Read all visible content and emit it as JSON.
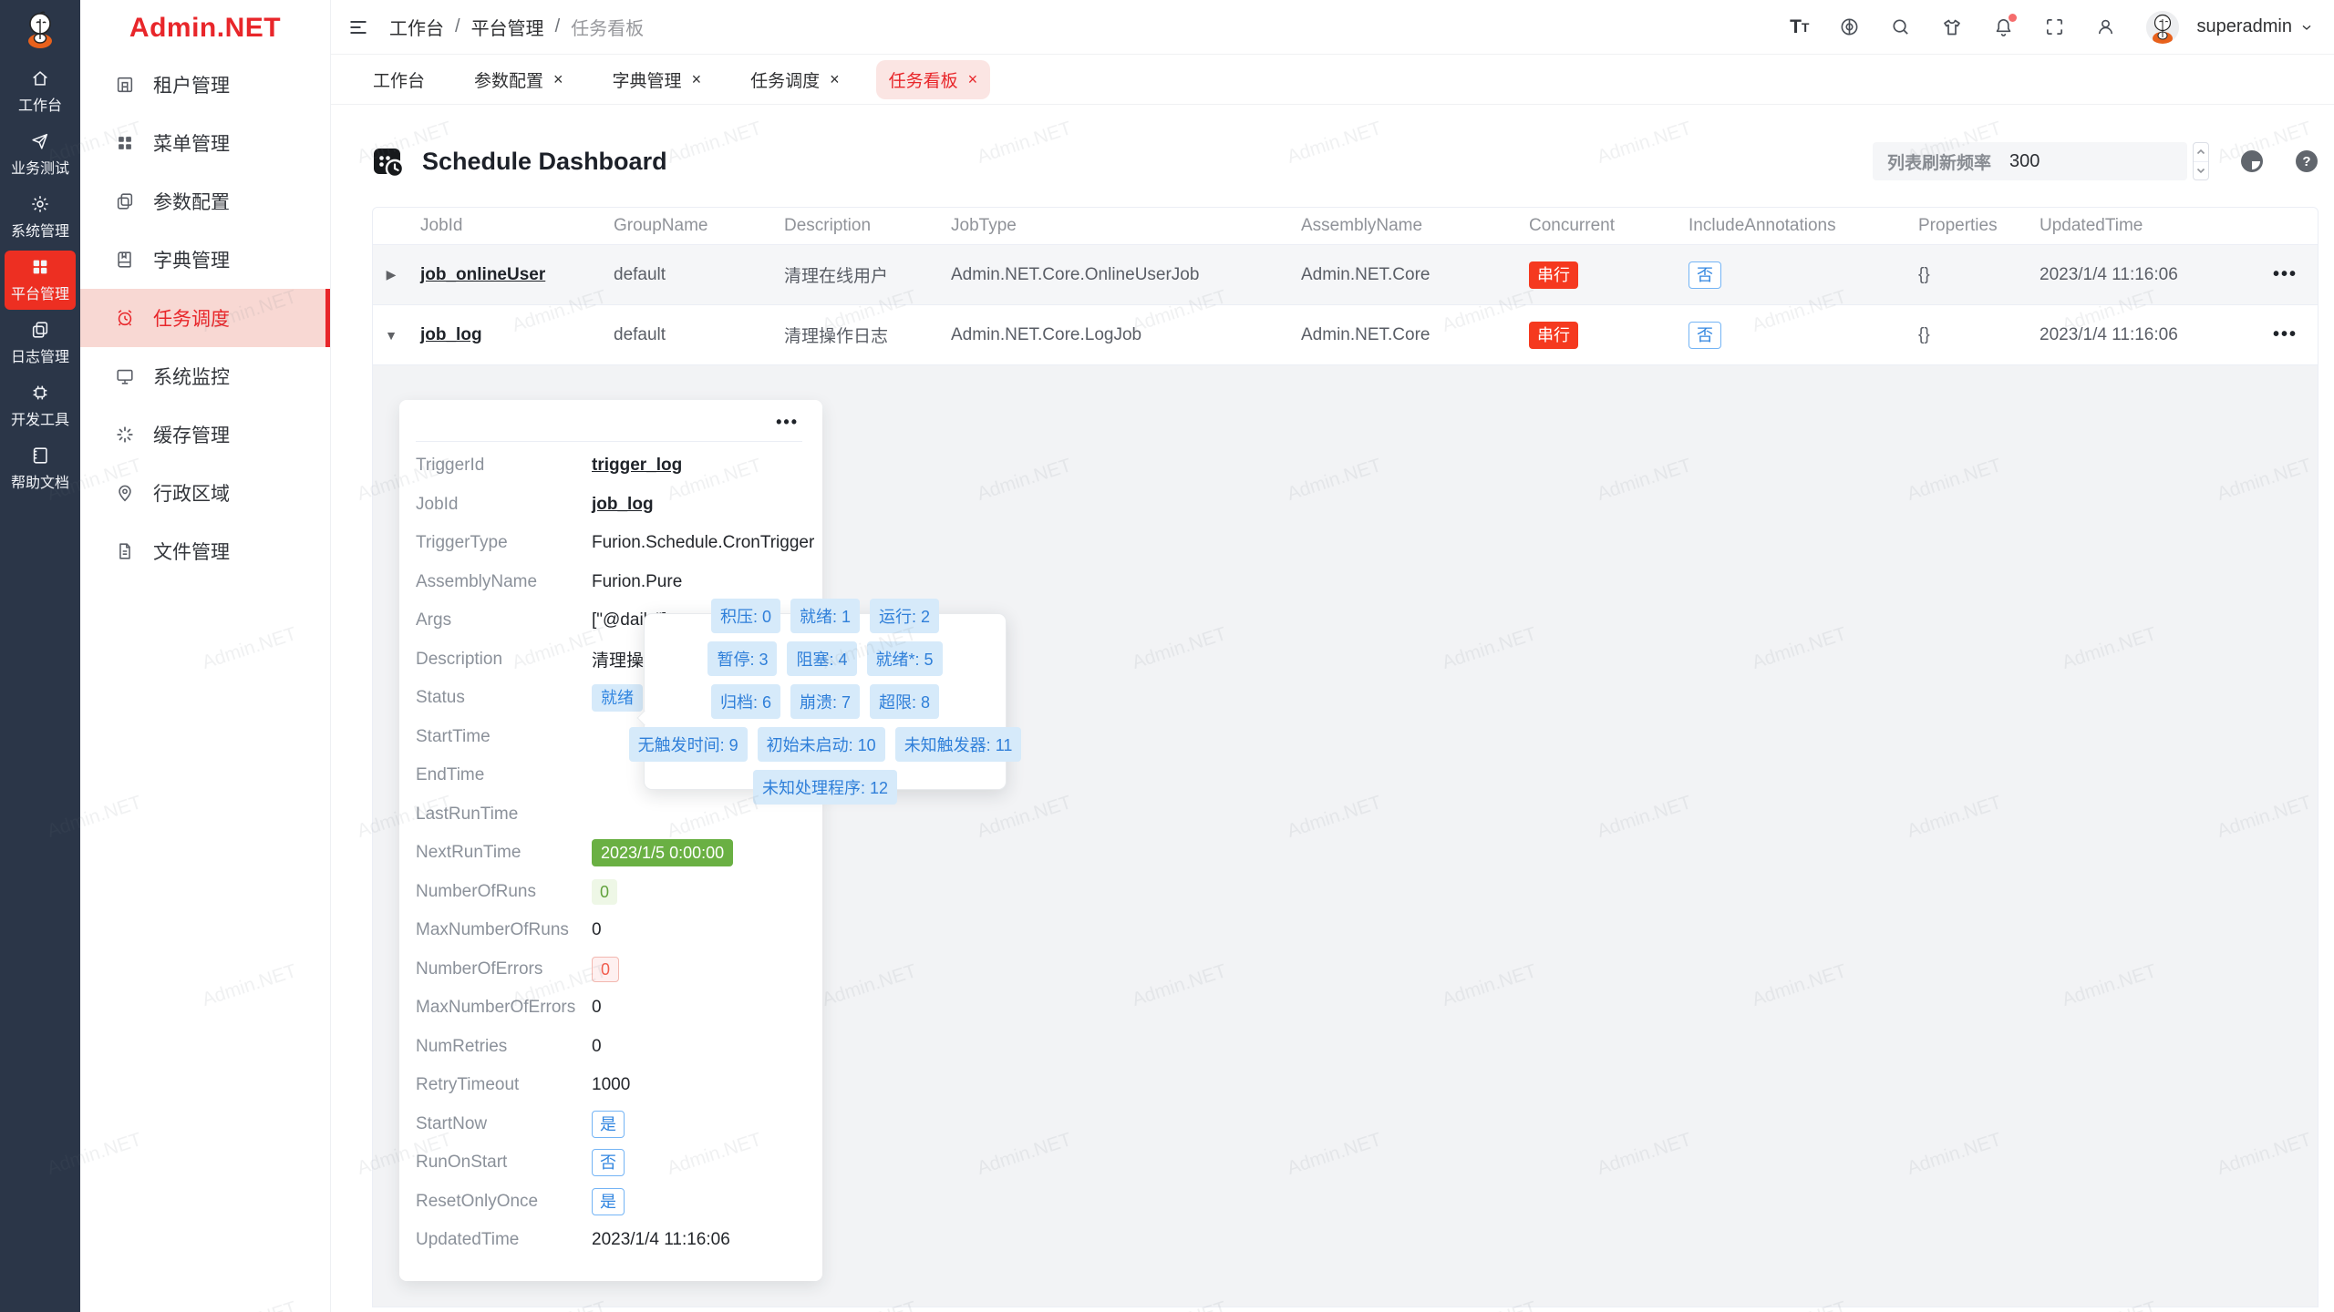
{
  "watermark": {
    "text": "Admin.NET"
  },
  "brand": {
    "logo_text": "Admin.NET"
  },
  "icons": {
    "more": "•••",
    "caret_right": "▶",
    "caret_down": "▼",
    "close": "×",
    "chevron_down": "⌄"
  },
  "rail": {
    "items": [
      {
        "label": "工作台"
      },
      {
        "label": "业务测试"
      },
      {
        "label": "系统管理"
      },
      {
        "label": "平台管理"
      },
      {
        "label": "日志管理"
      },
      {
        "label": "开发工具"
      },
      {
        "label": "帮助文档"
      }
    ]
  },
  "sidebar": {
    "items": [
      {
        "label": "租户管理"
      },
      {
        "label": "菜单管理"
      },
      {
        "label": "参数配置"
      },
      {
        "label": "字典管理"
      },
      {
        "label": "任务调度"
      },
      {
        "label": "系统监控"
      },
      {
        "label": "缓存管理"
      },
      {
        "label": "行政区域"
      },
      {
        "label": "文件管理"
      }
    ]
  },
  "topbar": {
    "breadcrumb": [
      "工作台",
      "平台管理",
      "任务看板"
    ],
    "separator": "/",
    "username": "superadmin"
  },
  "tabs": [
    {
      "label": "工作台"
    },
    {
      "label": "参数配置"
    },
    {
      "label": "字典管理"
    },
    {
      "label": "任务调度"
    },
    {
      "label": "任务看板"
    }
  ],
  "toolbar": {
    "title": "Schedule Dashboard",
    "refresh_label": "列表刷新频率",
    "refresh_value": "300"
  },
  "table": {
    "columns": [
      "JobId",
      "GroupName",
      "Description",
      "JobType",
      "AssemblyName",
      "Concurrent",
      "IncludeAnnotations",
      "Properties",
      "UpdatedTime"
    ],
    "rows": [
      {
        "job_id": "job_onlineUser",
        "group": "default",
        "description": "清理在线用户",
        "job_type": "Admin.NET.Core.OnlineUserJob",
        "assembly": "Admin.NET.Core",
        "concurrent": "串行",
        "include_annotations": "否",
        "properties": "{}",
        "updated_time": "2023/1/4 11:16:06"
      },
      {
        "job_id": "job_log",
        "group": "default",
        "description": "清理操作日志",
        "job_type": "Admin.NET.Core.LogJob",
        "assembly": "Admin.NET.Core",
        "concurrent": "串行",
        "include_annotations": "否",
        "properties": "{}",
        "updated_time": "2023/1/4 11:16:06"
      }
    ]
  },
  "detail": {
    "fields": [
      {
        "label": "TriggerId",
        "value": "trigger_log"
      },
      {
        "label": "JobId",
        "value": "job_log"
      },
      {
        "label": "TriggerType",
        "value": "Furion.Schedule.CronTrigger"
      },
      {
        "label": "AssemblyName",
        "value": "Furion.Pure"
      },
      {
        "label": "Args",
        "value": "[\"@daily\"]"
      },
      {
        "label": "Description",
        "value": "清理操作日志"
      },
      {
        "label": "Status",
        "value": "就绪"
      },
      {
        "label": "StartTime",
        "value": ""
      },
      {
        "label": "EndTime",
        "value": ""
      },
      {
        "label": "LastRunTime",
        "value": ""
      },
      {
        "label": "NextRunTime",
        "value": "2023/1/5 0:00:00"
      },
      {
        "label": "NumberOfRuns",
        "value": "0"
      },
      {
        "label": "MaxNumberOfRuns",
        "value": "0"
      },
      {
        "label": "NumberOfErrors",
        "value": "0"
      },
      {
        "label": "MaxNumberOfErrors",
        "value": "0"
      },
      {
        "label": "NumRetries",
        "value": "0"
      },
      {
        "label": "RetryTimeout",
        "value": "1000"
      },
      {
        "label": "StartNow",
        "value": "是"
      },
      {
        "label": "RunOnStart",
        "value": "否"
      },
      {
        "label": "ResetOnlyOnce",
        "value": "是"
      },
      {
        "label": "UpdatedTime",
        "value": "2023/1/4 11:16:06"
      }
    ]
  },
  "status_tooltip": {
    "tags": [
      "积压: 0",
      "就绪: 1",
      "运行: 2",
      "暂停: 3",
      "阻塞: 4",
      "就绪*: 5",
      "归档: 6",
      "崩溃: 7",
      "超限: 8",
      "无触发时间: 9",
      "初始未启动: 10",
      "未知触发器: 11",
      "未知处理程序: 12"
    ]
  },
  "colors": {
    "accent_red": "#e8262a",
    "rail_active": "#ed2f22",
    "tag_red": "#f5391f",
    "primary_blue": "#3286e0",
    "success_green": "#6ab043",
    "rail_bg": "#2b3648"
  }
}
